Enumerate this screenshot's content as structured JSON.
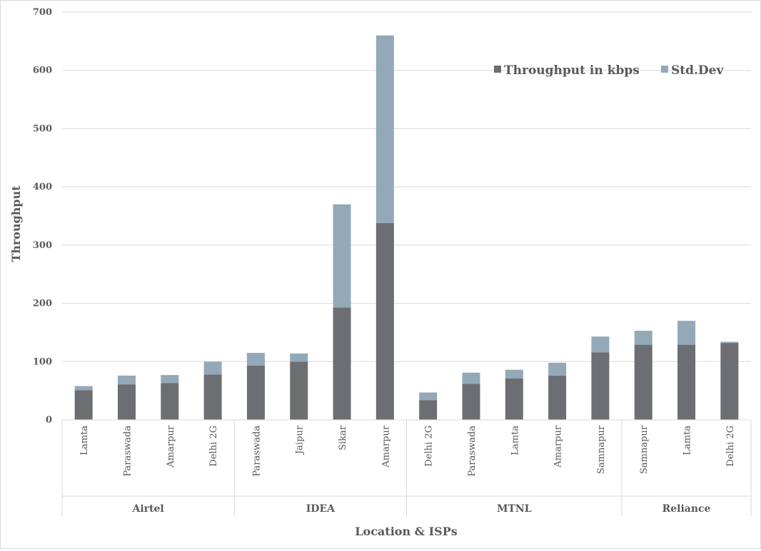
{
  "chart_data": {
    "type": "bar",
    "stacked": true,
    "title": "",
    "xlabel": "Location & ISPs",
    "ylabel": "Throughput",
    "ylim": [
      0,
      700
    ],
    "yticks": [
      0,
      100,
      200,
      300,
      400,
      500,
      600,
      700
    ],
    "grid": true,
    "legend_position": "top-right",
    "groups": [
      {
        "name": "Airtel",
        "categories": [
          "Lamta",
          "Paraswada",
          "Amarpur",
          "Delhi 2G"
        ]
      },
      {
        "name": "IDEA",
        "categories": [
          "Paraswada",
          "Jaipur",
          "Sikar",
          "Amarpur"
        ]
      },
      {
        "name": "MTNL",
        "categories": [
          "Delhi 2G",
          "Paraswada",
          "Lamta",
          "Amarpur",
          "Samnapur"
        ]
      },
      {
        "name": "Reliance",
        "categories": [
          "Samnapur",
          "Lamta",
          "Delhi 2G"
        ]
      }
    ],
    "series": [
      {
        "name": "Throughput in kbps",
        "color": "#6d6e71",
        "values": [
          51,
          61,
          63,
          78,
          93,
          100,
          193,
          338,
          34,
          62,
          71,
          76,
          116,
          129,
          129,
          132
        ]
      },
      {
        "name": "Std.Dev",
        "color": "#93a9b8",
        "values": [
          7,
          15,
          14,
          22,
          22,
          14,
          177,
          322,
          13,
          19,
          15,
          22,
          27,
          24,
          41,
          2
        ]
      }
    ]
  }
}
